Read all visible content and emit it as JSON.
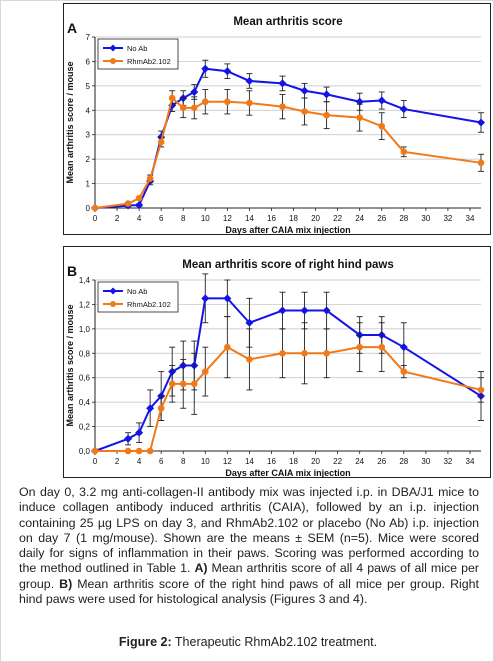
{
  "chart_data": [
    {
      "type": "line",
      "panel_letter": "A",
      "title": "Mean arthritis score",
      "xlabel": "Days after CAIA mix injection",
      "ylabel": "Mean arthritis score / mouse",
      "xlim": [
        0,
        35
      ],
      "ylim": [
        0,
        7
      ],
      "xticks": [
        0,
        2,
        4,
        6,
        8,
        10,
        12,
        14,
        16,
        18,
        20,
        22,
        24,
        26,
        28,
        30,
        32,
        34
      ],
      "yticks": [
        0,
        1,
        2,
        3,
        4,
        5,
        6,
        7
      ],
      "ytick_labels": [
        "0",
        "1",
        "2",
        "3",
        "4",
        "5",
        "6",
        "7"
      ],
      "grid": "horizontal",
      "legend_position": "top-left",
      "series": [
        {
          "name": "No Ab",
          "color": "#1414e6",
          "marker": "diamond",
          "x": [
            0,
            3,
            4,
            5,
            6,
            7,
            8,
            9,
            10,
            12,
            14,
            17,
            19,
            21,
            24,
            26,
            28,
            35
          ],
          "y": [
            0,
            0.1,
            0.12,
            1.1,
            2.9,
            4.2,
            4.5,
            4.75,
            5.7,
            5.6,
            5.2,
            5.1,
            4.8,
            4.65,
            4.35,
            4.4,
            4.05,
            3.5
          ],
          "err": [
            0,
            0.05,
            0.05,
            0.15,
            0.25,
            0.25,
            0.3,
            0.3,
            0.35,
            0.3,
            0.3,
            0.3,
            0.3,
            0.3,
            0.35,
            0.35,
            0.35,
            0.4
          ]
        },
        {
          "name": "RhmAb2.102",
          "color": "#f07a1a",
          "marker": "circle",
          "x": [
            0,
            3,
            4,
            5,
            6,
            7,
            8,
            9,
            10,
            12,
            14,
            17,
            19,
            21,
            24,
            26,
            28,
            35
          ],
          "y": [
            0,
            0.18,
            0.4,
            1.2,
            2.7,
            4.5,
            4.1,
            4.1,
            4.35,
            4.35,
            4.3,
            4.15,
            3.95,
            3.8,
            3.7,
            3.35,
            2.3,
            1.85
          ],
          "err": [
            0,
            0.05,
            0.05,
            0.15,
            0.2,
            0.3,
            0.4,
            0.45,
            0.5,
            0.5,
            0.5,
            0.5,
            0.55,
            0.55,
            0.55,
            0.55,
            0.2,
            0.35
          ]
        }
      ]
    },
    {
      "type": "line",
      "panel_letter": "B",
      "title": "Mean arthritis score of right hind paws",
      "xlabel": "Days after CAIA mix injection",
      "ylabel": "Mean arthritis score / mouse",
      "xlim": [
        0,
        35
      ],
      "ylim": [
        0,
        1.4
      ],
      "xticks": [
        0,
        2,
        4,
        6,
        8,
        10,
        12,
        14,
        16,
        18,
        20,
        22,
        24,
        26,
        28,
        30,
        32,
        34
      ],
      "yticks": [
        0,
        0.2,
        0.4,
        0.6,
        0.8,
        1.0,
        1.2,
        1.4
      ],
      "ytick_labels": [
        "0,0",
        "0,2",
        "0,4",
        "0,6",
        "0,8",
        "1,0",
        "1,2",
        "1,4"
      ],
      "grid": "horizontal",
      "legend_position": "top-left",
      "series": [
        {
          "name": "No Ab",
          "color": "#1414e6",
          "marker": "diamond",
          "x": [
            0,
            3,
            4,
            5,
            6,
            7,
            8,
            9,
            10,
            12,
            14,
            17,
            19,
            21,
            24,
            26,
            28,
            35
          ],
          "y": [
            0,
            0.1,
            0.15,
            0.35,
            0.45,
            0.65,
            0.7,
            0.7,
            1.25,
            1.25,
            1.05,
            1.15,
            1.15,
            1.15,
            0.95,
            0.95,
            0.85,
            0.45
          ],
          "err": [
            0,
            0.05,
            0.08,
            0.15,
            0.2,
            0.2,
            0.2,
            0.2,
            0.2,
            0.15,
            0.2,
            0.15,
            0.15,
            0.15,
            0.15,
            0.15,
            0.2,
            0.2
          ]
        },
        {
          "name": "RhmAb2.102",
          "color": "#f07a1a",
          "marker": "circle",
          "x": [
            0,
            3,
            4,
            5,
            6,
            7,
            8,
            9,
            10,
            12,
            14,
            17,
            19,
            21,
            24,
            26,
            28,
            35
          ],
          "y": [
            0,
            0,
            0,
            0,
            0.35,
            0.55,
            0.55,
            0.55,
            0.65,
            0.85,
            0.75,
            0.8,
            0.8,
            0.8,
            0.85,
            0.85,
            0.65,
            0.5
          ],
          "err": [
            0,
            0,
            0,
            0,
            0.1,
            0.15,
            0.2,
            0.25,
            0.2,
            0.25,
            0.25,
            0.2,
            0.25,
            0.2,
            0.2,
            0.2,
            0.05,
            0.1
          ]
        }
      ]
    }
  ],
  "caption": {
    "p1": "On day 0, 3.2 mg anti-collagen-II antibody mix was injected i.p. in DBA/J1 mice to induce collagen antibody induced arthritis (CAIA), followed by an i.p. injection containing 25 µg LPS on day 3, and RhmAb2.102 or placebo (No Ab) i.p. injection on day 7 (1 mg/mouse). Shown are the means ± SEM (n=5). Mice were scored daily for signs of inflammation in their paws. Scoring was performed according to the method outlined in Table 1. ",
    "a_label": "A)",
    "p2": " Mean arthritis score of all 4 paws of all mice per group. ",
    "b_label": "B)",
    "p3": " Mean arthritis score of the right hind paws of all mice per group. Right hind paws were used for histological analysis (Figures 3 and 4)."
  },
  "figure_label": {
    "bold": "Figure 2:",
    "text": " Therapeutic RhmAb2.102 treatment."
  }
}
